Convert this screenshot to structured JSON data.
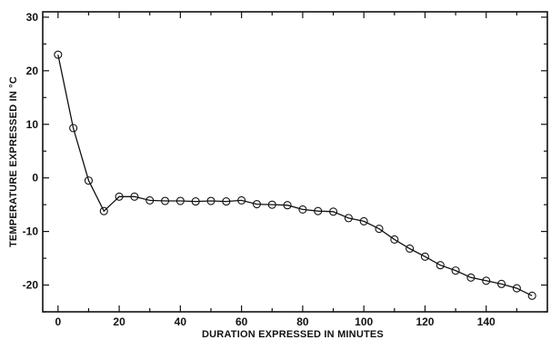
{
  "chart_data": {
    "type": "line",
    "title": "",
    "xlabel": "DURATION EXPRESSED IN MINUTES",
    "ylabel": "TEMPERATURE  EXPRESSED IN °C",
    "xlim": [
      -5,
      160
    ],
    "ylim": [
      -25,
      31
    ],
    "xticks": [
      0,
      20,
      40,
      60,
      80,
      100,
      120,
      140
    ],
    "yticks": [
      30,
      20,
      10,
      0,
      -10,
      -20
    ],
    "grid": false,
    "legend": "none",
    "marker": "open-circle",
    "line_color": "#111111",
    "series": [
      {
        "x": [
          0,
          5,
          10,
          15,
          20,
          25,
          30,
          35,
          40,
          45,
          50,
          55,
          60,
          65,
          70,
          75,
          80,
          85,
          90,
          95,
          100,
          105,
          110,
          115,
          120,
          125,
          130,
          135,
          140,
          145,
          150,
          155
        ],
        "values": [
          23,
          9.3,
          -0.5,
          -6.2,
          -3.5,
          -3.5,
          -4.2,
          -4.3,
          -4.3,
          -4.4,
          -4.3,
          -4.4,
          -4.2,
          -4.9,
          -5.0,
          -5.1,
          -5.9,
          -6.2,
          -6.3,
          -7.5,
          -8.1,
          -9.5,
          -11.5,
          -13.2,
          -14.7,
          -16.3,
          -17.3,
          -18.6,
          -19.2,
          -19.8,
          -20.6,
          -22.0
        ]
      }
    ]
  }
}
